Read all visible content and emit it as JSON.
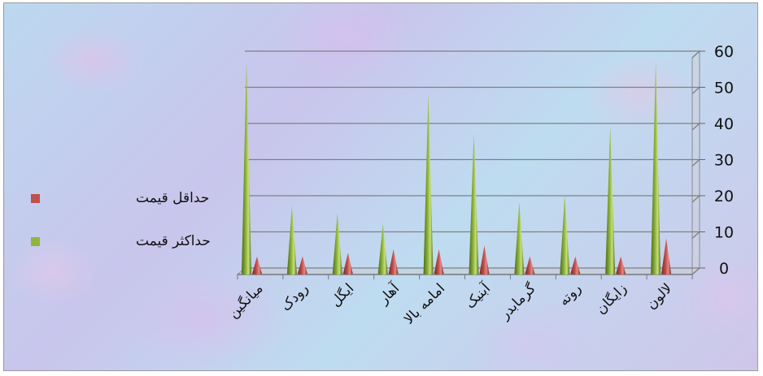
{
  "chart_data": {
    "type": "bar",
    "style": "3d-cone",
    "categories": [
      "میانگین",
      "رودک",
      "ایگل",
      "آهار",
      "امامه بالا",
      "آبنیک",
      "گرمابدر",
      "روته",
      "زایگان",
      "لالون"
    ],
    "series": [
      {
        "name": "حداکثر قیمت",
        "color": "#8fb63b",
        "values": [
          59,
          19,
          17,
          14,
          50,
          39,
          20,
          22,
          41,
          59
        ]
      },
      {
        "name": "حداقل قیمت",
        "color": "#c0504d",
        "values": [
          5,
          5,
          6,
          7,
          7,
          8,
          5,
          5,
          5,
          10
        ]
      }
    ],
    "y_ticks": [
      "0",
      "10",
      "20",
      "30",
      "40",
      "50",
      "60"
    ],
    "ylim": [
      0,
      60
    ],
    "yaxis_side": "right",
    "grid": true,
    "legend_position": "left"
  }
}
